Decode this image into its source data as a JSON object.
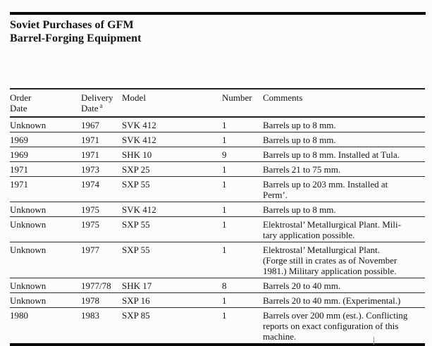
{
  "title": {
    "line1": "Soviet Purchases of GFM",
    "line2": "Barrel-Forging Equipment"
  },
  "table": {
    "headers": {
      "order": "Order\nDate",
      "delivery": "Delivery\nDate",
      "delivery_footnote_marker": "a",
      "model": "Model",
      "number": "Number",
      "comments": "Comments"
    },
    "rows": [
      {
        "order": "Unknown",
        "delivery": "1967",
        "model": "SVK 412",
        "number": "1",
        "comments": "Barrels up to 8 mm."
      },
      {
        "order": "1969",
        "delivery": "1971",
        "model": "SVK 412",
        "number": "1",
        "comments": "Barrels up to 8 mm."
      },
      {
        "order": "1969",
        "delivery": "1971",
        "model": "SHK 10",
        "number": "9",
        "comments": "Barrels up to 8 mm. Installed at Tula."
      },
      {
        "order": "1971",
        "delivery": "1973",
        "model": "SXP 25",
        "number": "1",
        "comments": "Barrels 21 to 75 mm."
      },
      {
        "order": "1971",
        "delivery": "1974",
        "model": "SXP 55",
        "number": "1",
        "comments": "Barrels up to 203 mm. Installed at\nPerm’."
      },
      {
        "order": "Unknown",
        "delivery": "1975",
        "model": "SVK 412",
        "number": "1",
        "comments": "Barrels up to 8 mm."
      },
      {
        "order": "Unknown",
        "delivery": "1975",
        "model": "SXP 55",
        "number": "1",
        "comments": "Elektrostal’ Metallurgical Plant. Mili-\ntary application possible."
      },
      {
        "order": "Unknown",
        "delivery": "1977",
        "model": "SXP 55",
        "number": "1",
        "comments": "Elektrostal’ Metallurgical Plant.\n(Forge still in crates as of November\n1981.) Military application possible."
      },
      {
        "order": "Unknown",
        "delivery": "1977/78",
        "model": "SHK 17",
        "number": "8",
        "comments": "Barrels 20 to 40 mm."
      },
      {
        "order": "Unknown",
        "delivery": "1978",
        "model": "SXP 16",
        "number": "1",
        "comments": "Barrels 20 to 40 mm. (Experimental.)"
      },
      {
        "order": "1980",
        "delivery": "1983",
        "model": "SXP 85",
        "number": "1",
        "comments": "Barrels over 200 mm (est.). Conflicting\nreports on exact configuration of this\nmachine."
      }
    ]
  },
  "colors": {
    "text": "#151515",
    "rule_thick": "#0a0a0a",
    "rule_thin": "#2b2b2b",
    "background": "#fcfcfa"
  }
}
